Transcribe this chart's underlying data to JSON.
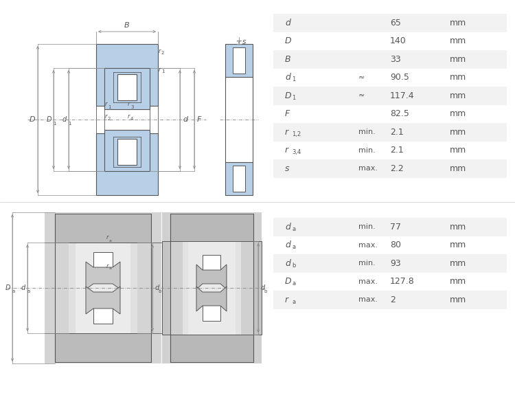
{
  "bg_color": "#ffffff",
  "line_color": "#555555",
  "blue_fill": "#b8cfe8",
  "dark_gray": "#888888",
  "text_color": "#555555",
  "top_table": [
    {
      "symbol": "d",
      "sub": "",
      "qualifier": "",
      "value": "65",
      "unit": "mm"
    },
    {
      "symbol": "D",
      "sub": "",
      "qualifier": "",
      "value": "140",
      "unit": "mm"
    },
    {
      "symbol": "B",
      "sub": "",
      "qualifier": "",
      "value": "33",
      "unit": "mm"
    },
    {
      "symbol": "d",
      "sub": "1",
      "qualifier": "≈",
      "value": "90.5",
      "unit": "mm"
    },
    {
      "symbol": "D",
      "sub": "1",
      "qualifier": "≈",
      "value": "117.4",
      "unit": "mm"
    },
    {
      "symbol": "F",
      "sub": "",
      "qualifier": "",
      "value": "82.5",
      "unit": "mm"
    },
    {
      "symbol": "r",
      "sub": "1,2",
      "qualifier": "min.",
      "value": "2.1",
      "unit": "mm"
    },
    {
      "symbol": "r",
      "sub": "3,4",
      "qualifier": "min.",
      "value": "2.1",
      "unit": "mm"
    },
    {
      "symbol": "s",
      "sub": "",
      "qualifier": "max.",
      "value": "2.2",
      "unit": "mm"
    }
  ],
  "bottom_table": [
    {
      "symbol": "d",
      "sub": "a",
      "qualifier": "min.",
      "value": "77",
      "unit": "mm"
    },
    {
      "symbol": "d",
      "sub": "a",
      "qualifier": "max.",
      "value": "80",
      "unit": "mm"
    },
    {
      "symbol": "d",
      "sub": "b",
      "qualifier": "min.",
      "value": "93",
      "unit": "mm"
    },
    {
      "symbol": "D",
      "sub": "a",
      "qualifier": "max.",
      "value": "127.8",
      "unit": "mm"
    },
    {
      "symbol": "r",
      "sub": "a",
      "qualifier": "max.",
      "value": "2",
      "unit": "mm"
    }
  ]
}
